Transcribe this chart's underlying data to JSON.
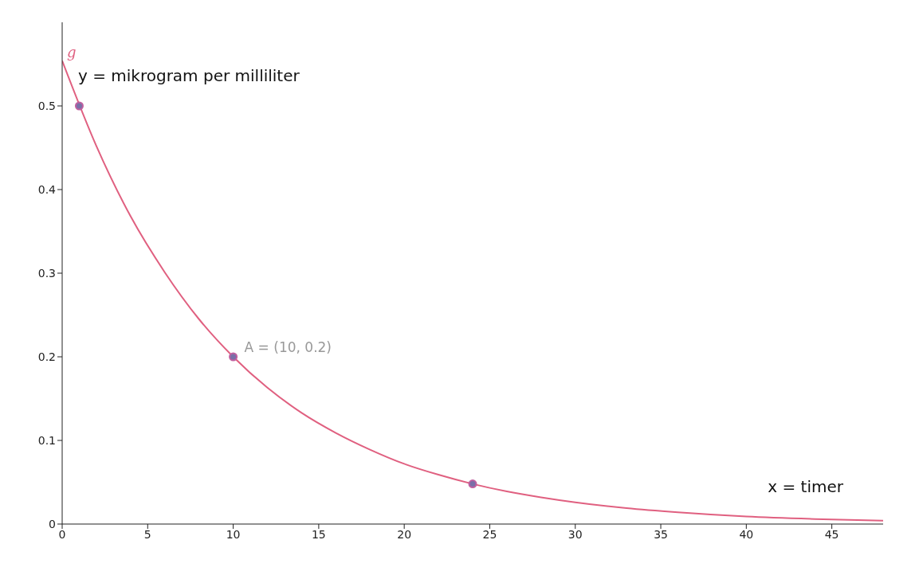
{
  "chart_data": {
    "type": "line",
    "xlabel": "x = timer",
    "ylabel": "y = mikrogram per milliliter",
    "xlim": [
      0,
      48
    ],
    "ylim": [
      0,
      0.6
    ],
    "xticks": [
      0,
      5,
      10,
      15,
      20,
      25,
      30,
      35,
      40,
      45
    ],
    "yticks": [
      0,
      0.1,
      0.2,
      0.3,
      0.4,
      0.5
    ],
    "grid": false,
    "legend": false,
    "series": [
      {
        "name": "g",
        "color": "#e06080",
        "marker": "none",
        "x": [
          0,
          2,
          4,
          6,
          8,
          10,
          12,
          14,
          16,
          18,
          20,
          22,
          24,
          26,
          28,
          30,
          33,
          36,
          40,
          44,
          48
        ],
        "values": [
          0.554,
          0.452,
          0.368,
          0.301,
          0.245,
          0.2,
          0.163,
          0.133,
          0.109,
          0.089,
          0.072,
          0.059,
          0.048,
          0.039,
          0.032,
          0.026,
          0.019,
          0.014,
          0.009,
          0.006,
          0.004
        ]
      },
      {
        "type": "scatter",
        "color": "#7a6fa8",
        "marker": "circle",
        "x": [
          1,
          10,
          24
        ],
        "values": [
          0.5,
          0.2,
          0.048
        ]
      }
    ],
    "annotations": [
      {
        "text": "A = (10, 0.2)",
        "x": 10,
        "y": 0.2
      }
    ]
  }
}
